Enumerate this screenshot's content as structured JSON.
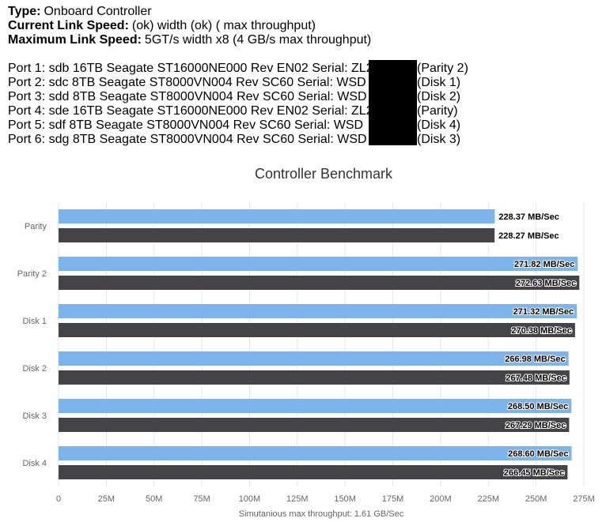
{
  "header": {
    "lines": [
      {
        "label": "Type:",
        "value": "Onboard Controller"
      },
      {
        "label": "Current Link Speed:",
        "value": "(ok) width (ok) ( max throughput)"
      },
      {
        "label": "Maximum Link Speed:",
        "value": "5GT/s width x8 (4 GB/s max throughput)"
      }
    ],
    "ports": [
      {
        "text": "Port 1: sdb 16TB Seagate ST16000NE000 Rev EN02 Serial: ZL2",
        "role": "(Parity 2)"
      },
      {
        "text": "Port 2: sdc 8TB  Seagate ST8000VN004 Rev SC60 Serial: WSD",
        "role": "(Disk 1)"
      },
      {
        "text": "Port 3: sdd 8TB  Seagate ST8000VN004 Rev SC60 Serial: WSD",
        "role": "(Disk 2)"
      },
      {
        "text": "Port 4: sde 16TB Seagate ST16000NE000 Rev EN02 Serial: ZL2",
        "role": "(Parity)"
      },
      {
        "text": "Port 5: sdf  8TB  Seagate ST8000VN004 Rev SC60 Serial: WSD",
        "role": "(Disk 4)"
      },
      {
        "text": "Port 6: sdg 8TB  Seagate ST8000VN004 Rev SC60 Serial: WSD",
        "role": "(Disk 3)"
      }
    ]
  },
  "chart_data": {
    "type": "bar",
    "orientation": "horizontal",
    "title": "Controller Benchmark",
    "x_label": "Simutanious max throughput: 1.61 GB/Sec",
    "categories": [
      "Parity",
      "Parity 2",
      "Disk 1",
      "Disk 2",
      "Disk 3",
      "Disk 4"
    ],
    "series": [
      {
        "color": "#7cb5ec",
        "values": [
          228.37,
          271.82,
          271.32,
          266.98,
          268.5,
          268.6
        ],
        "value_labels": [
          "228.37 MB/Sec",
          "271.82 MB/Sec",
          "271.32 MB/Sec",
          "266.98 MB/Sec",
          "268.50 MB/Sec",
          "268.60 MB/Sec"
        ]
      },
      {
        "color": "#434348",
        "values": [
          228.27,
          272.63,
          270.38,
          267.48,
          267.29,
          266.45
        ],
        "value_labels": [
          "228.27 MB/Sec",
          "272.63 MB/Sec",
          "270.38 MB/Sec",
          "267.48 MB/Sec",
          "267.29 MB/Sec",
          "266.45 MB/Sec"
        ]
      }
    ],
    "xlim": [
      0,
      275
    ],
    "xticks": [
      0,
      {
        "value": 25,
        "label": "25M"
      },
      {
        "value": 50,
        "label": "50M"
      },
      {
        "value": 75,
        "label": "75M"
      },
      {
        "value": 100,
        "label": "100M"
      },
      {
        "value": 125,
        "label": "125M"
      },
      {
        "value": 150,
        "label": "150M"
      },
      {
        "value": 175,
        "label": "175M"
      },
      {
        "value": 200,
        "label": "200M"
      },
      {
        "value": 225,
        "label": "225M"
      },
      {
        "value": 250,
        "label": "250M"
      },
      {
        "value": 275,
        "label": "275M"
      }
    ],
    "grid": true
  }
}
